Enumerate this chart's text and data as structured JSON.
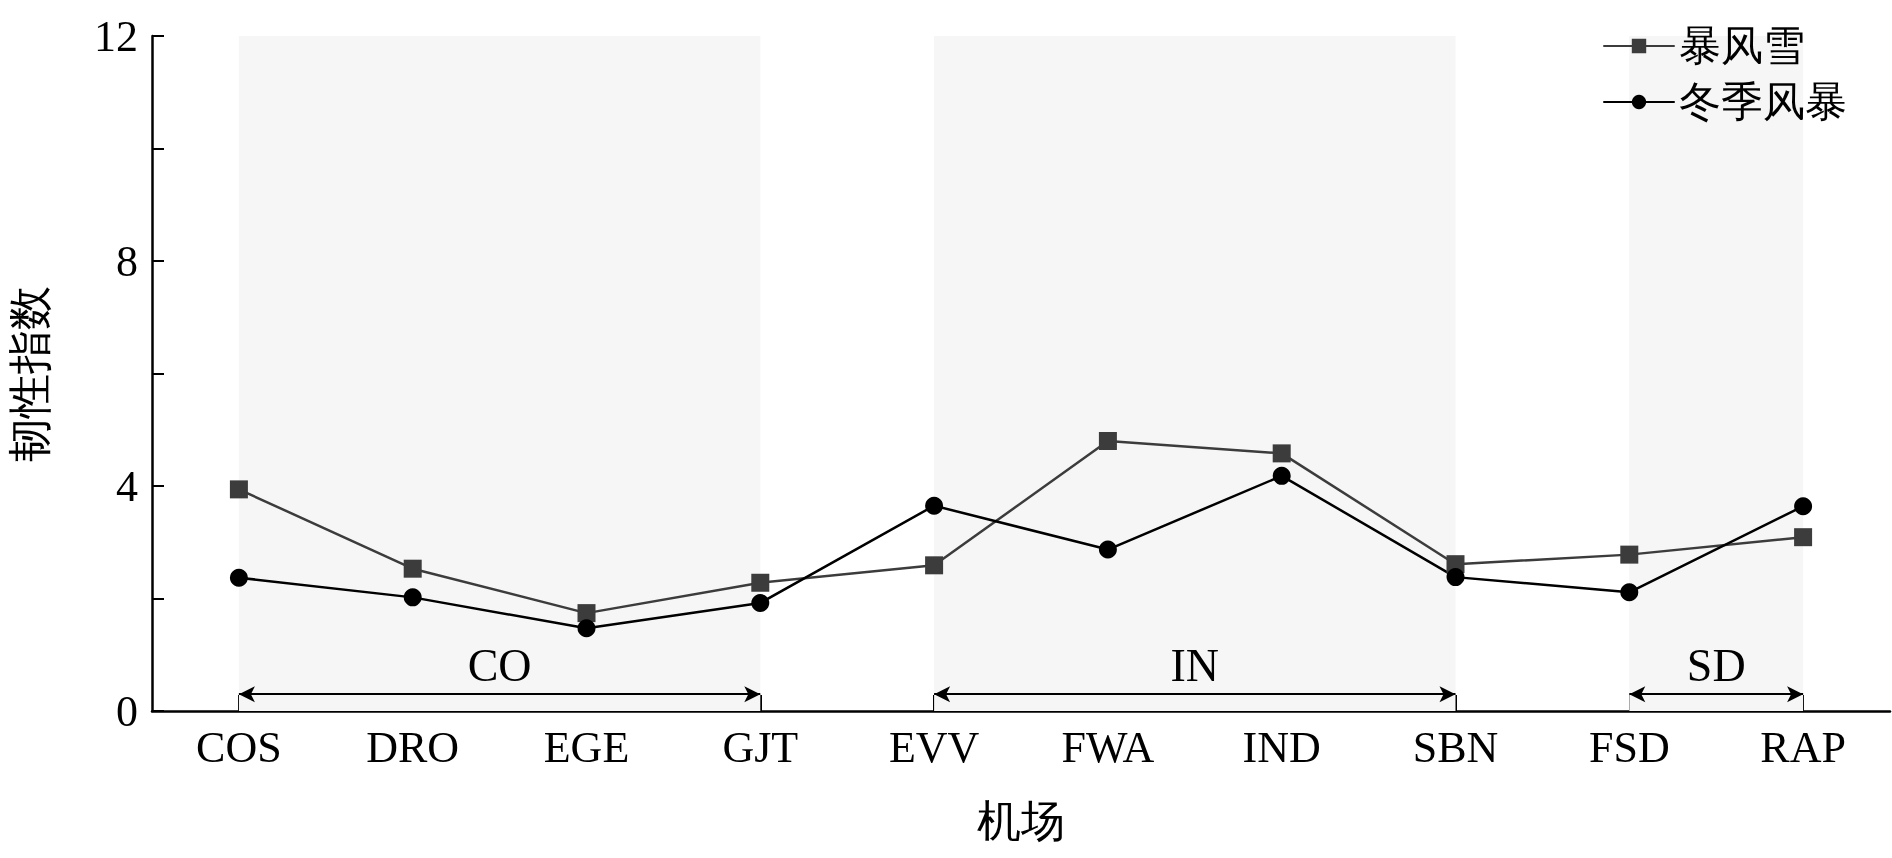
{
  "chart_data": {
    "type": "line",
    "xlabel": "机场",
    "ylabel": "韧性指数",
    "categories": [
      "COS",
      "DRO",
      "EGE",
      "GJT",
      "EVV",
      "FWA",
      "IND",
      "SBN",
      "FSD",
      "RAP"
    ],
    "series": [
      {
        "name": "暴风雪",
        "color": "#3c3c3c",
        "marker": "square",
        "values": [
          3.94,
          2.53,
          1.74,
          2.28,
          2.59,
          4.8,
          4.58,
          2.61,
          2.78,
          3.09
        ]
      },
      {
        "name": "冬季风暴",
        "color": "#000000",
        "marker": "circle",
        "values": [
          2.37,
          2.02,
          1.47,
          1.92,
          3.65,
          2.87,
          4.18,
          2.38,
          2.11,
          3.64
        ]
      }
    ],
    "ylim": [
      0,
      12
    ],
    "yticks": [
      0,
      {
        "value": 2,
        "label": null
      },
      4,
      {
        "value": 6,
        "label": null
      },
      8,
      {
        "value": 10,
        "label": null
      },
      12
    ],
    "bands": [
      {
        "axis": "x",
        "from": "COS",
        "to": "GJT",
        "label": "CO",
        "color": "#f6f6f6"
      },
      {
        "axis": "x",
        "from": "EVV",
        "to": "SBN",
        "label": "IN",
        "color": "#f6f6f6"
      },
      {
        "axis": "x",
        "from": "FSD",
        "to": "RAP",
        "label": "SD",
        "color": "#f6f6f6"
      }
    ],
    "grid": false,
    "legend": "top right",
    "line_style": "solid"
  }
}
